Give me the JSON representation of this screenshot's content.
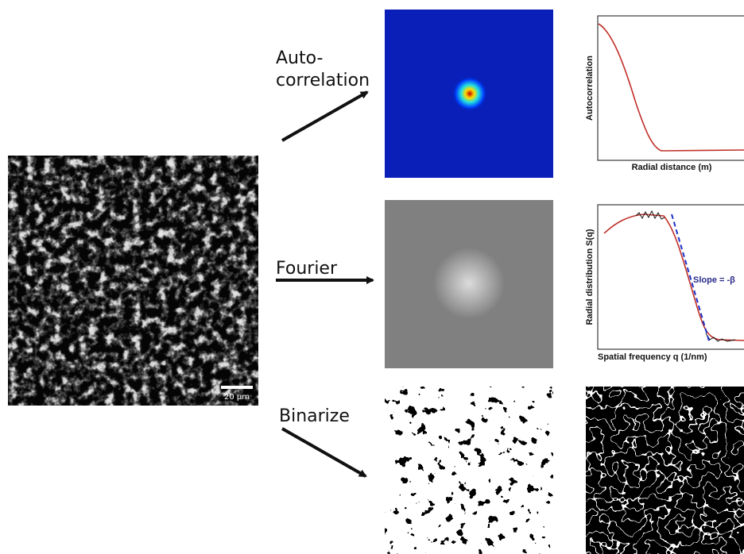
{
  "source_image": {
    "scale_bar": "20 µm"
  },
  "rows": [
    {
      "operation_lines": [
        "Auto-",
        "correlation"
      ],
      "plot": {
        "y_label": "Autocorrelation",
        "x_label": "Radial distance (m)"
      }
    },
    {
      "operation_lines": [
        "Fourier"
      ],
      "plot": {
        "y_label": "Radial distribution S(q)",
        "x_label": "Spatial frequency q (1/nm)",
        "annotation": "Slope = -β"
      }
    },
    {
      "operation_lines": [
        "Binarize"
      ]
    }
  ]
}
